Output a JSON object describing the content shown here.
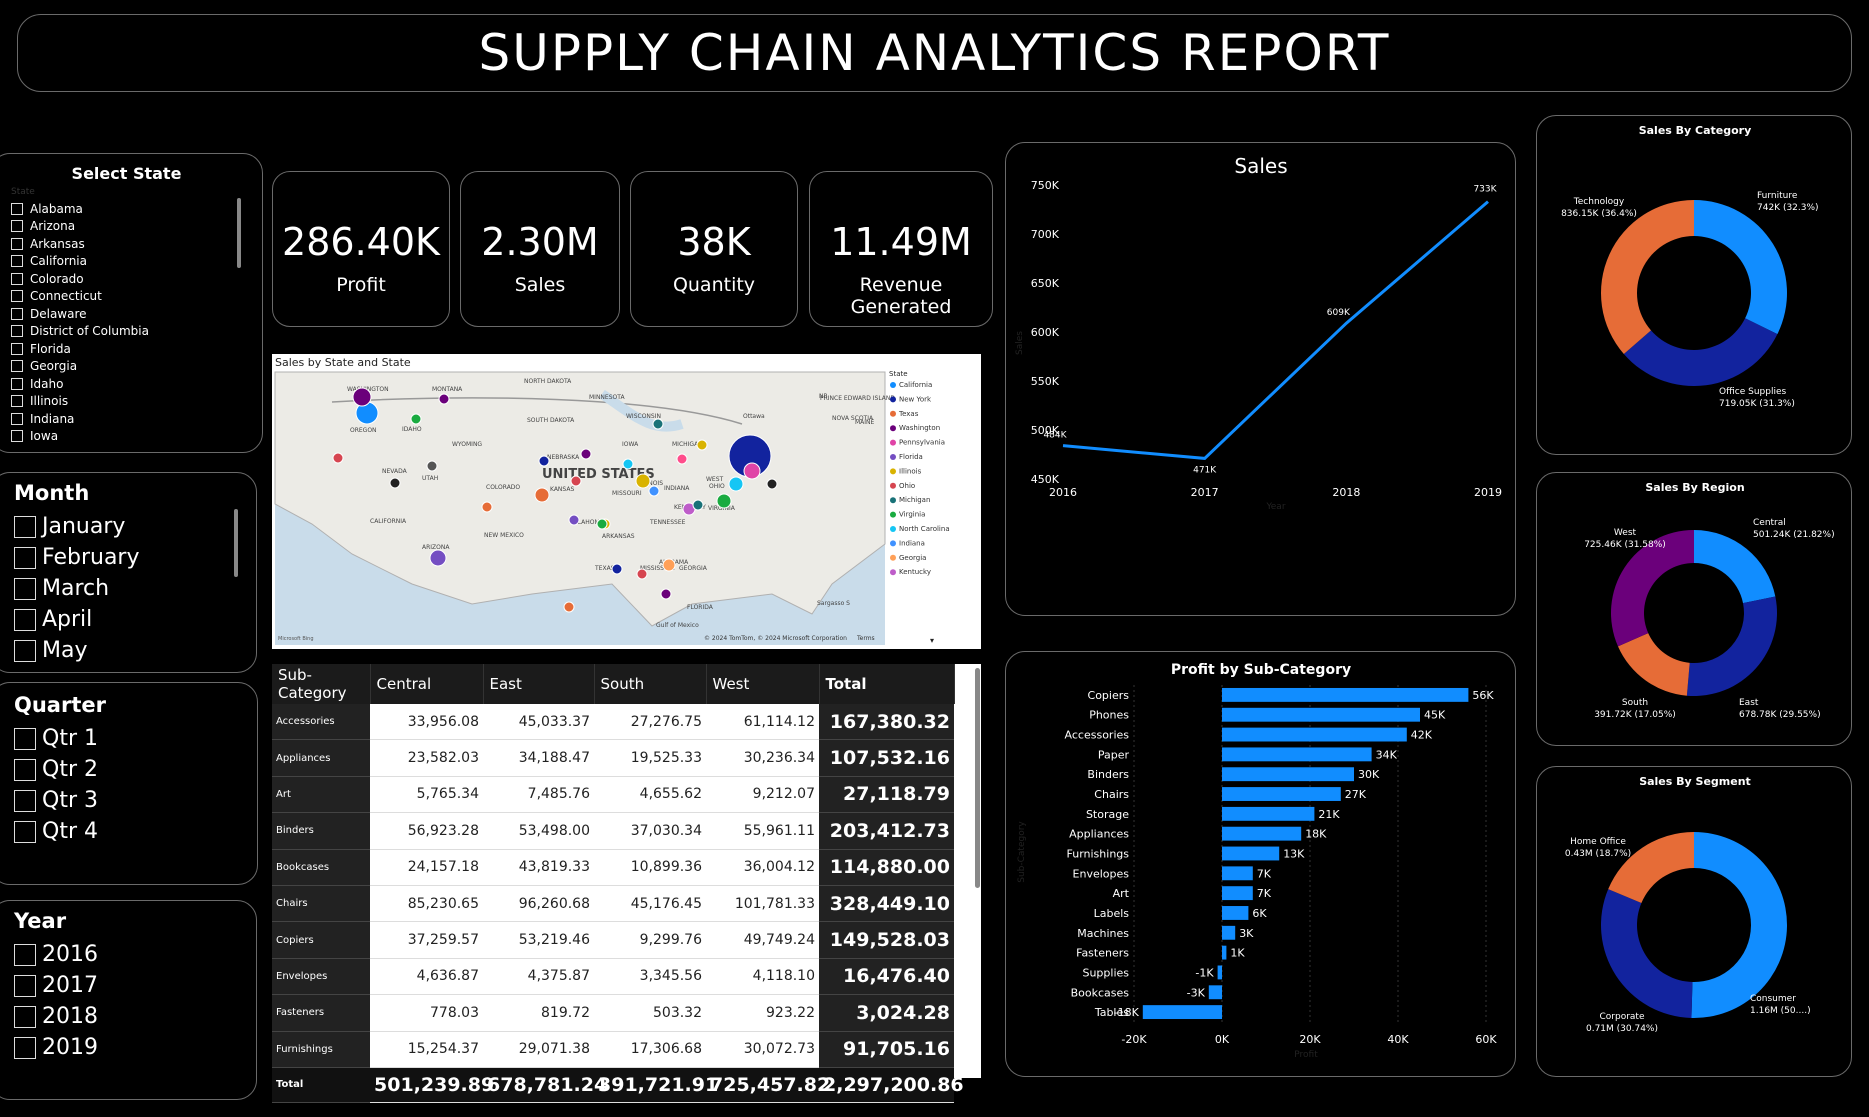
{
  "header": {
    "title": "SUPPLY CHAIN ANALYTICS REPORT"
  },
  "kpis": [
    {
      "value": "286.40K",
      "label": "Profit"
    },
    {
      "value": "2.30M",
      "label": "Sales"
    },
    {
      "value": "38K",
      "label": "Quantity"
    },
    {
      "value": "11.49M",
      "label": "Revenue Generated"
    }
  ],
  "state_slicer": {
    "title": "Select State",
    "field": "State",
    "items": [
      "Alabama",
      "Arizona",
      "Arkansas",
      "California",
      "Colorado",
      "Connecticut",
      "Delaware",
      "District of Columbia",
      "Florida",
      "Georgia",
      "Idaho",
      "Illinois",
      "Indiana",
      "Iowa"
    ]
  },
  "month_slicer": {
    "title": "Month",
    "items": [
      "January",
      "February",
      "March",
      "April",
      "May"
    ]
  },
  "quarter_slicer": {
    "title": "Quarter",
    "items": [
      "Qtr 1",
      "Qtr 2",
      "Qtr 3",
      "Qtr 4"
    ]
  },
  "year_slicer": {
    "title": "Year",
    "items": [
      "2016",
      "2017",
      "2018",
      "2019"
    ]
  },
  "map": {
    "title": "Sales by State and State",
    "legend_title": "State",
    "legend": [
      {
        "name": "California",
        "color": "#118dff"
      },
      {
        "name": "New York",
        "color": "#12239e"
      },
      {
        "name": "Texas",
        "color": "#e66c37"
      },
      {
        "name": "Washington",
        "color": "#6b007b"
      },
      {
        "name": "Pennsylvania",
        "color": "#e044a7"
      },
      {
        "name": "Florida",
        "color": "#744ec2"
      },
      {
        "name": "Illinois",
        "color": "#d9b300"
      },
      {
        "name": "Ohio",
        "color": "#d64550"
      },
      {
        "name": "Michigan",
        "color": "#197278"
      },
      {
        "name": "Virginia",
        "color": "#1aab40"
      },
      {
        "name": "North Carolina",
        "color": "#15c6f4"
      },
      {
        "name": "Indiana",
        "color": "#4092ff"
      },
      {
        "name": "Georgia",
        "color": "#ffa058"
      },
      {
        "name": "Kentucky",
        "color": "#be5dc9"
      }
    ],
    "labels": [
      "WASHINGTON",
      "MONTANA",
      "NORTH DAKOTA",
      "MINNESOTA",
      "OREGON",
      "IDAHO",
      "SOUTH DAKOTA",
      "WISCONSIN",
      "WYOMING",
      "IOWA",
      "MICHIGAN",
      "NEBRASKA",
      "NEVADA",
      "UTAH",
      "COLORADO",
      "KANSAS",
      "MISSOURI",
      "ILLINOIS",
      "INDIANA",
      "OHIO",
      "WEST",
      "CALIFORNIA",
      "ARIZONA",
      "NEW MEXICO",
      "OKLAHOMA",
      "ARKANSAS",
      "TENNESSEE",
      "KENTUCKY",
      "VIRGINIA",
      "TEXAS",
      "MISSISSIPPI",
      "ALABAMA",
      "GEORGIA",
      "FLORIDA",
      "UNITED STATES",
      "Ottawa",
      "PRINCE EDWARD ISLAND",
      "NOVA SCOTIA",
      "NB",
      "MAINE",
      "Gulf of Mexico",
      "Sargasso S"
    ],
    "attribution": "© 2024 TomTom, © 2024 Microsoft Corporation",
    "terms": "Terms",
    "brand": "Microsoft Bing"
  },
  "matrix": {
    "columns": [
      "Sub-Category",
      "Central",
      "East",
      "South",
      "West",
      "Total"
    ],
    "rows": [
      {
        "name": "Accessories",
        "central": "33,956.08",
        "east": "45,033.37",
        "south": "27,276.75",
        "west": "61,114.12",
        "total": "167,380.32"
      },
      {
        "name": "Appliances",
        "central": "23,582.03",
        "east": "34,188.47",
        "south": "19,525.33",
        "west": "30,236.34",
        "total": "107,532.16"
      },
      {
        "name": "Art",
        "central": "5,765.34",
        "east": "7,485.76",
        "south": "4,655.62",
        "west": "9,212.07",
        "total": "27,118.79"
      },
      {
        "name": "Binders",
        "central": "56,923.28",
        "east": "53,498.00",
        "south": "37,030.34",
        "west": "55,961.11",
        "total": "203,412.73"
      },
      {
        "name": "Bookcases",
        "central": "24,157.18",
        "east": "43,819.33",
        "south": "10,899.36",
        "west": "36,004.12",
        "total": "114,880.00"
      },
      {
        "name": "Chairs",
        "central": "85,230.65",
        "east": "96,260.68",
        "south": "45,176.45",
        "west": "101,781.33",
        "total": "328,449.10"
      },
      {
        "name": "Copiers",
        "central": "37,259.57",
        "east": "53,219.46",
        "south": "9,299.76",
        "west": "49,749.24",
        "total": "149,528.03"
      },
      {
        "name": "Envelopes",
        "central": "4,636.87",
        "east": "4,375.87",
        "south": "3,345.56",
        "west": "4,118.10",
        "total": "16,476.40"
      },
      {
        "name": "Fasteners",
        "central": "778.03",
        "east": "819.72",
        "south": "503.32",
        "west": "923.22",
        "total": "3,024.28"
      },
      {
        "name": "Furnishings",
        "central": "15,254.37",
        "east": "29,071.38",
        "south": "17,306.68",
        "west": "30,072.73",
        "total": "91,705.16"
      }
    ],
    "total": {
      "name": "Total",
      "central": "501,239.89",
      "east": "678,781.24",
      "south": "391,721.91",
      "west": "725,457.82",
      "total": "2,297,200.86"
    }
  },
  "sales_line": {
    "chart_data": {
      "type": "line",
      "title": "Sales",
      "xlabel": "Year",
      "ylabel": "Sales",
      "x": [
        "2016",
        "2017",
        "2018",
        "2019"
      ],
      "values": [
        484,
        471,
        609,
        733
      ],
      "data_labels": [
        "484K",
        "471K",
        "609K",
        "733K"
      ],
      "y_ticks": [
        "450K",
        "500K",
        "550K",
        "600K",
        "650K",
        "700K",
        "750K"
      ],
      "ylim": [
        450,
        750
      ],
      "color": "#118dff"
    }
  },
  "profit_bar": {
    "chart_data": {
      "type": "bar",
      "orientation": "horizontal",
      "title": "Profit by Sub-Category",
      "xlabel": "Profit",
      "ylabel": "Sub-Category",
      "categories": [
        "Copiers",
        "Phones",
        "Accessories",
        "Paper",
        "Binders",
        "Chairs",
        "Storage",
        "Appliances",
        "Furnishings",
        "Envelopes",
        "Art",
        "Labels",
        "Machines",
        "Fasteners",
        "Supplies",
        "Bookcases",
        "Tables"
      ],
      "values": [
        56,
        45,
        42,
        34,
        30,
        27,
        21,
        18,
        13,
        7,
        7,
        6,
        3,
        1,
        -1,
        -3,
        -18
      ],
      "data_labels": [
        "56K",
        "45K",
        "42K",
        "34K",
        "30K",
        "27K",
        "21K",
        "18K",
        "13K",
        "7K",
        "7K",
        "6K",
        "3K",
        "1K",
        "-1K",
        "-3K",
        "-18K"
      ],
      "x_ticks": [
        "-20K",
        "0K",
        "20K",
        "40K",
        "60K"
      ],
      "xlim": [
        -20,
        60
      ],
      "color": "#118dff"
    }
  },
  "donuts": [
    {
      "chart_data": {
        "type": "pie",
        "title": "Sales By Category",
        "slices": [
          {
            "name": "Furniture",
            "value": 742,
            "label": "742K (32.3%)",
            "color": "#118dff"
          },
          {
            "name": "Office Supplies",
            "value": 719.05,
            "label": "719.05K (31.3%)",
            "color": "#12239e"
          },
          {
            "name": "Technology",
            "value": 836.15,
            "label": "836.15K (36.4%)",
            "color": "#e66c37"
          }
        ]
      }
    },
    {
      "chart_data": {
        "type": "pie",
        "title": "Sales By Region",
        "slices": [
          {
            "name": "Central",
            "value": 501.24,
            "label": "501.24K (21.82%)",
            "color": "#118dff"
          },
          {
            "name": "East",
            "value": 678.78,
            "label": "678.78K (29.55%)",
            "color": "#12239e"
          },
          {
            "name": "South",
            "value": 391.72,
            "label": "391.72K (17.05%)",
            "color": "#e66c37"
          },
          {
            "name": "West",
            "value": 725.46,
            "label": "725.46K (31.58%)",
            "color": "#6b007b"
          }
        ]
      }
    },
    {
      "chart_data": {
        "type": "pie",
        "title": "Sales By Segment",
        "slices": [
          {
            "name": "Consumer",
            "value": 1.16,
            "label": "1.16M (50....)",
            "color": "#118dff"
          },
          {
            "name": "Corporate",
            "value": 0.71,
            "label": "0.71M (30.74%)",
            "color": "#12239e"
          },
          {
            "name": "Home Office",
            "value": 0.43,
            "label": "0.43M (18.7%)",
            "color": "#e66c37"
          }
        ]
      }
    }
  ]
}
